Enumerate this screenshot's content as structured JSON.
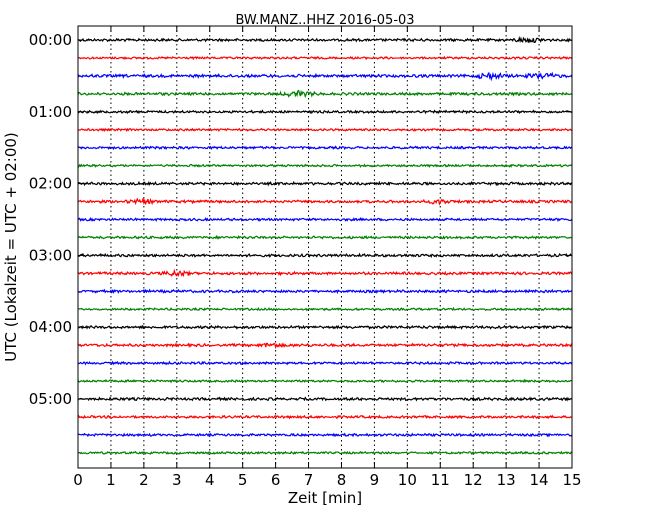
{
  "chart_data": {
    "type": "line",
    "title": "BW.MANZ..HHZ 2016-05-03",
    "xlabel": "Zeit  [min]",
    "ylabel": "UTC (Lokalzeit = UTC + 02:00)",
    "xlim": [
      0,
      15
    ],
    "x_ticks": [
      "0",
      "1",
      "2",
      "3",
      "4",
      "5",
      "6",
      "7",
      "8",
      "9",
      "10",
      "11",
      "12",
      "13",
      "14",
      "15"
    ],
    "y_ticks": [
      {
        "label": "00:00",
        "row": 0
      },
      {
        "label": "01:00",
        "row": 4
      },
      {
        "label": "02:00",
        "row": 8
      },
      {
        "label": "03:00",
        "row": 12
      },
      {
        "label": "04:00",
        "row": 16
      },
      {
        "label": "05:00",
        "row": 20
      }
    ],
    "grid": {
      "x": true,
      "y": false,
      "style": "dotted"
    },
    "row_interval_minutes": 15,
    "trace_colors": [
      "#000000",
      "#ff0000",
      "#0000ff",
      "#008000"
    ],
    "rows": [
      {
        "start": "00:00",
        "color": "#000000",
        "amplitude": 1.0,
        "bursts": [
          {
            "at": 13.7,
            "strength": 1.8
          }
        ]
      },
      {
        "start": "00:15",
        "color": "#ff0000",
        "amplitude": 0.8,
        "bursts": []
      },
      {
        "start": "00:30",
        "color": "#0000ff",
        "amplitude": 1.1,
        "bursts": [
          {
            "at": 12.5,
            "strength": 1.6
          },
          {
            "at": 14.1,
            "strength": 1.6
          }
        ]
      },
      {
        "start": "00:45",
        "color": "#008000",
        "amplitude": 1.0,
        "bursts": [
          {
            "at": 6.7,
            "strength": 2.2
          }
        ]
      },
      {
        "start": "01:00",
        "color": "#000000",
        "amplitude": 0.9,
        "bursts": []
      },
      {
        "start": "01:15",
        "color": "#ff0000",
        "amplitude": 0.8,
        "bursts": []
      },
      {
        "start": "01:30",
        "color": "#0000ff",
        "amplitude": 0.9,
        "bursts": []
      },
      {
        "start": "01:45",
        "color": "#008000",
        "amplitude": 0.8,
        "bursts": []
      },
      {
        "start": "02:00",
        "color": "#000000",
        "amplitude": 1.0,
        "bursts": []
      },
      {
        "start": "02:15",
        "color": "#ff0000",
        "amplitude": 1.0,
        "bursts": [
          {
            "at": 2.0,
            "strength": 1.5
          },
          {
            "at": 11.0,
            "strength": 1.5
          }
        ]
      },
      {
        "start": "02:30",
        "color": "#0000ff",
        "amplitude": 0.9,
        "bursts": []
      },
      {
        "start": "02:45",
        "color": "#008000",
        "amplitude": 0.9,
        "bursts": []
      },
      {
        "start": "03:00",
        "color": "#000000",
        "amplitude": 1.0,
        "bursts": []
      },
      {
        "start": "03:15",
        "color": "#ff0000",
        "amplitude": 1.0,
        "bursts": [
          {
            "at": 3.0,
            "strength": 1.6
          }
        ]
      },
      {
        "start": "03:30",
        "color": "#0000ff",
        "amplitude": 1.0,
        "bursts": []
      },
      {
        "start": "03:45",
        "color": "#008000",
        "amplitude": 0.8,
        "bursts": []
      },
      {
        "start": "04:00",
        "color": "#000000",
        "amplitude": 1.0,
        "bursts": []
      },
      {
        "start": "04:15",
        "color": "#ff0000",
        "amplitude": 1.0,
        "bursts": [
          {
            "at": 5.8,
            "strength": 1.5
          }
        ]
      },
      {
        "start": "04:30",
        "color": "#0000ff",
        "amplitude": 0.9,
        "bursts": []
      },
      {
        "start": "04:45",
        "color": "#008000",
        "amplitude": 0.8,
        "bursts": []
      },
      {
        "start": "05:00",
        "color": "#000000",
        "amplitude": 1.0,
        "bursts": []
      },
      {
        "start": "05:15",
        "color": "#ff0000",
        "amplitude": 0.9,
        "bursts": []
      },
      {
        "start": "05:30",
        "color": "#0000ff",
        "amplitude": 0.9,
        "bursts": []
      },
      {
        "start": "05:45",
        "color": "#008000",
        "amplitude": 0.8,
        "bursts": []
      }
    ]
  }
}
